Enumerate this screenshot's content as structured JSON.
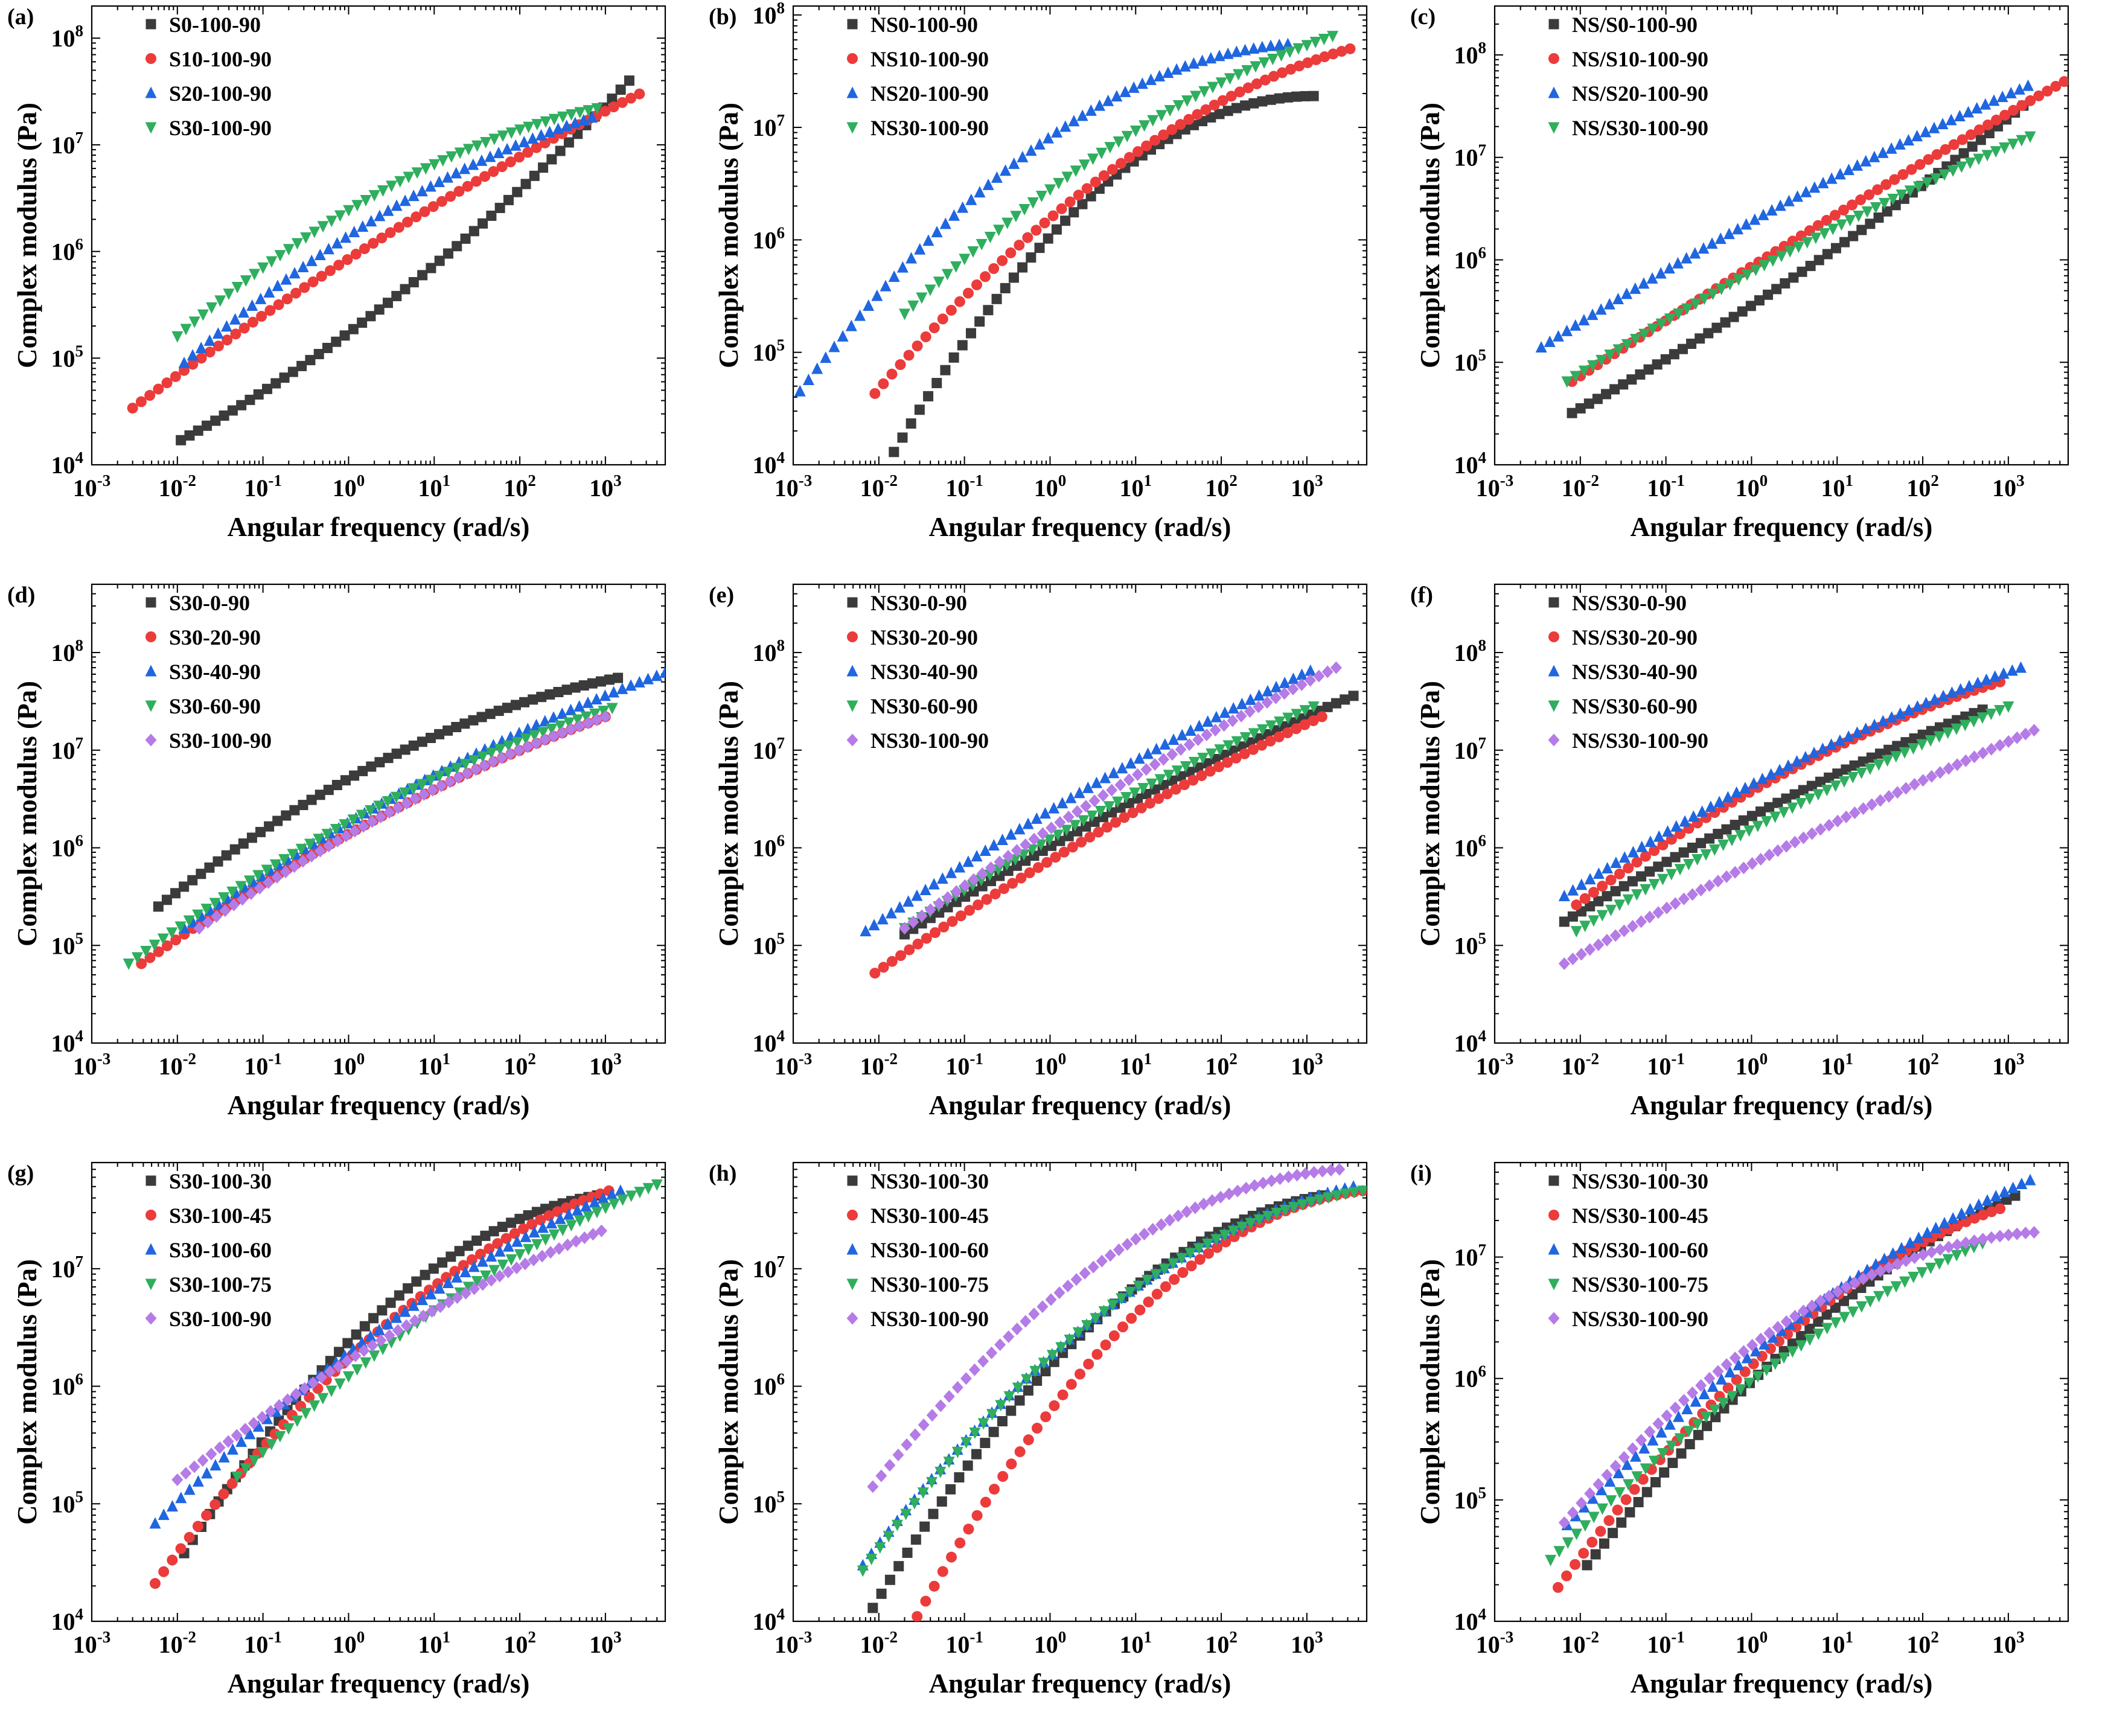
{
  "colors": {
    "black": "#3b3b3b",
    "red": "#ec3b3b",
    "blue": "#1f66e0",
    "green": "#2fae5e",
    "purple": "#b57be6"
  },
  "chart_data": [
    {
      "panel": "(a)",
      "type": "scatter",
      "xlabel": "Angular frequency (rad/s)",
      "ylabel": "Complex modulus (Pa)",
      "xscale": "log",
      "yscale": "log",
      "xlim": [
        0.001,
        5000
      ],
      "ylim": [
        10000,
        200000000
      ],
      "xticks": [
        "-3",
        "-2",
        "-1",
        "0",
        "1",
        "2",
        "3"
      ],
      "yticks": [
        "4",
        "5",
        "6",
        "7",
        "8"
      ],
      "legend_position": "top-left",
      "grid": false,
      "series": [
        {
          "name": "S0-100-90",
          "marker": "square",
          "color": "black",
          "x_range": [
            0.011,
            1900
          ],
          "y_range": [
            17000,
            40000000
          ],
          "shape": 0.08
        },
        {
          "name": "S10-100-90",
          "marker": "circle",
          "color": "red",
          "x_range": [
            0.003,
            2500
          ],
          "y_range": [
            34000,
            30000000
          ],
          "shape": -0.05
        },
        {
          "name": "S20-100-90",
          "marker": "triangle-up",
          "color": "blue",
          "x_range": [
            0.012,
            700
          ],
          "y_range": [
            90000,
            18000000
          ],
          "shape": -0.12
        },
        {
          "name": "S30-100-90",
          "marker": "triangle-down",
          "color": "green",
          "x_range": [
            0.01,
            800
          ],
          "y_range": [
            160000,
            22000000
          ],
          "shape": -0.15
        }
      ]
    },
    {
      "panel": "(b)",
      "type": "scatter",
      "xlabel": "Angular frequency (rad/s)",
      "ylabel": "Complex modulus (Pa)",
      "xscale": "log",
      "yscale": "log",
      "xlim": [
        0.001,
        5000
      ],
      "ylim": [
        10000,
        120000000
      ],
      "xticks": [
        "-3",
        "-2",
        "-1",
        "0",
        "1",
        "2",
        "3"
      ],
      "yticks": [
        "4",
        "5",
        "6",
        "7",
        "8"
      ],
      "legend_position": "top-left",
      "grid": false,
      "series": [
        {
          "name": "NS0-100-90",
          "marker": "square",
          "color": "black",
          "x_range": [
            0.015,
            1200
          ],
          "y_range": [
            13000,
            19000000
          ],
          "shape": -0.25
        },
        {
          "name": "NS10-100-90",
          "marker": "circle",
          "color": "red",
          "x_range": [
            0.009,
            3200
          ],
          "y_range": [
            43000,
            50000000
          ],
          "shape": -0.15
        },
        {
          "name": "NS20-100-90",
          "marker": "triangle-up",
          "color": "blue",
          "x_range": [
            0.0012,
            600
          ],
          "y_range": [
            45000,
            55000000
          ],
          "shape": -0.22
        },
        {
          "name": "NS30-100-90",
          "marker": "triangle-down",
          "color": "green",
          "x_range": [
            0.02,
            2000
          ],
          "y_range": [
            220000,
            65000000
          ],
          "shape": -0.12
        }
      ]
    },
    {
      "panel": "(c)",
      "type": "scatter",
      "xlabel": "Angular frequency (rad/s)",
      "ylabel": "Complex modulus (Pa)",
      "xscale": "log",
      "yscale": "log",
      "xlim": [
        0.001,
        5000
      ],
      "ylim": [
        10000,
        300000000
      ],
      "xticks": [
        "-3",
        "-2",
        "-1",
        "0",
        "1",
        "2",
        "3"
      ],
      "yticks": [
        "4",
        "5",
        "6",
        "7",
        "8"
      ],
      "legend_position": "top-left",
      "grid": false,
      "series": [
        {
          "name": "NS/S0-100-90",
          "marker": "square",
          "color": "black",
          "x_range": [
            0.008,
            1500
          ],
          "y_range": [
            32000,
            32000000
          ],
          "shape": 0.05
        },
        {
          "name": "NS/S10-100-90",
          "marker": "circle",
          "color": "red",
          "x_range": [
            0.008,
            4500
          ],
          "y_range": [
            65000,
            55000000
          ],
          "shape": -0.02
        },
        {
          "name": "NS/S20-100-90",
          "marker": "triangle-up",
          "color": "blue",
          "x_range": [
            0.0035,
            1700
          ],
          "y_range": [
            140000,
            50000000
          ],
          "shape": -0.05
        },
        {
          "name": "NS/S30-100-90",
          "marker": "triangle-down",
          "color": "green",
          "x_range": [
            0.007,
            1800
          ],
          "y_range": [
            65000,
            16000000
          ],
          "shape": -0.05
        }
      ]
    },
    {
      "panel": "(d)",
      "type": "scatter",
      "xlabel": "Angular frequency (rad/s)",
      "ylabel": "Complex modulus (Pa)",
      "xscale": "log",
      "yscale": "log",
      "xlim": [
        0.001,
        5000
      ],
      "ylim": [
        10000,
        500000000
      ],
      "xticks": [
        "-3",
        "-2",
        "-1",
        "0",
        "1",
        "2",
        "3"
      ],
      "yticks": [
        "4",
        "5",
        "6",
        "7",
        "8"
      ],
      "legend_position": "top-left",
      "grid": false,
      "series": [
        {
          "name": "S30-0-90",
          "marker": "square",
          "color": "black",
          "x_range": [
            0.006,
            1400
          ],
          "y_range": [
            250000,
            55000000
          ],
          "shape": -0.15
        },
        {
          "name": "S30-20-90",
          "marker": "circle",
          "color": "red",
          "x_range": [
            0.0038,
            1000
          ],
          "y_range": [
            65000,
            22000000
          ],
          "shape": -0.08
        },
        {
          "name": "S30-40-90",
          "marker": "triangle-up",
          "color": "blue",
          "x_range": [
            0.012,
            5000
          ],
          "y_range": [
            150000,
            62000000
          ],
          "shape": -0.08
        },
        {
          "name": "S30-60-90",
          "marker": "triangle-down",
          "color": "green",
          "x_range": [
            0.0027,
            1200
          ],
          "y_range": [
            65000,
            27000000
          ],
          "shape": -0.1
        },
        {
          "name": "S30-100-90",
          "marker": "diamond",
          "color": "purple",
          "x_range": [
            0.018,
            1000
          ],
          "y_range": [
            150000,
            22000000
          ],
          "shape": -0.08
        }
      ]
    },
    {
      "panel": "(e)",
      "type": "scatter",
      "xlabel": "Angular frequency (rad/s)",
      "ylabel": "Complex modulus (Pa)",
      "xscale": "log",
      "yscale": "log",
      "xlim": [
        0.001,
        5000
      ],
      "ylim": [
        10000,
        500000000
      ],
      "xticks": [
        "-3",
        "-2",
        "-1",
        "0",
        "1",
        "2",
        "3"
      ],
      "yticks": [
        "4",
        "5",
        "6",
        "7",
        "8"
      ],
      "legend_position": "top-left",
      "grid": false,
      "series": [
        {
          "name": "NS30-0-90",
          "marker": "square",
          "color": "black",
          "x_range": [
            0.02,
            3500
          ],
          "y_range": [
            130000,
            36000000
          ],
          "shape": -0.05
        },
        {
          "name": "NS30-20-90",
          "marker": "circle",
          "color": "red",
          "x_range": [
            0.009,
            1500
          ],
          "y_range": [
            52000,
            22000000
          ],
          "shape": -0.05
        },
        {
          "name": "NS30-40-90",
          "marker": "triangle-up",
          "color": "blue",
          "x_range": [
            0.007,
            1100
          ],
          "y_range": [
            140000,
            65000000
          ],
          "shape": -0.05
        },
        {
          "name": "NS30-60-90",
          "marker": "triangle-down",
          "color": "green",
          "x_range": [
            0.02,
            1200
          ],
          "y_range": [
            150000,
            28000000
          ],
          "shape": -0.05
        },
        {
          "name": "NS30-100-90",
          "marker": "diamond",
          "color": "purple",
          "x_range": [
            0.02,
            2200
          ],
          "y_range": [
            150000,
            70000000
          ],
          "shape": -0.05
        }
      ]
    },
    {
      "panel": "(f)",
      "type": "scatter",
      "xlabel": "Angular frequency (rad/s)",
      "ylabel": "Complex modulus (Pa)",
      "xscale": "log",
      "yscale": "log",
      "xlim": [
        0.001,
        5000
      ],
      "ylim": [
        10000,
        500000000
      ],
      "xticks": [
        "-3",
        "-2",
        "-1",
        "0",
        "1",
        "2",
        "3"
      ],
      "yticks": [
        "4",
        "5",
        "6",
        "7",
        "8"
      ],
      "legend_position": "top-left",
      "grid": false,
      "series": [
        {
          "name": "NS/S30-0-90",
          "marker": "square",
          "color": "black",
          "x_range": [
            0.0065,
            500
          ],
          "y_range": [
            175000,
            26000000
          ],
          "shape": -0.05
        },
        {
          "name": "NS/S30-20-90",
          "marker": "circle",
          "color": "red",
          "x_range": [
            0.009,
            800
          ],
          "y_range": [
            260000,
            50000000
          ],
          "shape": -0.1
        },
        {
          "name": "NS/S30-40-90",
          "marker": "triangle-up",
          "color": "blue",
          "x_range": [
            0.0065,
            1400
          ],
          "y_range": [
            320000,
            70000000
          ],
          "shape": -0.08
        },
        {
          "name": "NS/S30-60-90",
          "marker": "triangle-down",
          "color": "green",
          "x_range": [
            0.009,
            1000
          ],
          "y_range": [
            140000,
            28000000
          ],
          "shape": -0.05
        },
        {
          "name": "NS/S30-100-90",
          "marker": "diamond",
          "color": "purple",
          "x_range": [
            0.0065,
            2000
          ],
          "y_range": [
            65000,
            16000000
          ],
          "shape": -0.03
        }
      ]
    },
    {
      "panel": "(g)",
      "type": "scatter",
      "xlabel": "Angular frequency (rad/s)",
      "ylabel": "Complex modulus (Pa)",
      "xscale": "log",
      "yscale": "log",
      "xlim": [
        0.001,
        5000
      ],
      "ylim": [
        10000,
        80000000
      ],
      "xticks": [
        "-3",
        "-2",
        "-1",
        "0",
        "1",
        "2",
        "3"
      ],
      "yticks": [
        "4",
        "5",
        "6",
        "7"
      ],
      "legend_position": "top-left",
      "grid": false,
      "series": [
        {
          "name": "S30-100-30",
          "marker": "square",
          "color": "black",
          "x_range": [
            0.012,
            800
          ],
          "y_range": [
            38000,
            42000000
          ],
          "shape": -0.2
        },
        {
          "name": "S30-100-45",
          "marker": "circle",
          "color": "red",
          "x_range": [
            0.0055,
            1100
          ],
          "y_range": [
            21000,
            46000000
          ],
          "shape": -0.15
        },
        {
          "name": "S30-100-60",
          "marker": "triangle-up",
          "color": "blue",
          "x_range": [
            0.0055,
            1500
          ],
          "y_range": [
            68000,
            46000000
          ],
          "shape": -0.1
        },
        {
          "name": "S30-100-75",
          "marker": "triangle-down",
          "color": "green",
          "x_range": [
            0.05,
            4000
          ],
          "y_range": [
            170000,
            52000000
          ],
          "shape": -0.1
        },
        {
          "name": "S30-100-90",
          "marker": "diamond",
          "color": "purple",
          "x_range": [
            0.01,
            900
          ],
          "y_range": [
            160000,
            21000000
          ],
          "shape": -0.08
        }
      ]
    },
    {
      "panel": "(h)",
      "type": "scatter",
      "xlabel": "Angular frequency (rad/s)",
      "ylabel": "Complex modulus (Pa)",
      "xscale": "log",
      "yscale": "log",
      "xlim": [
        0.001,
        5000
      ],
      "ylim": [
        10000,
        80000000
      ],
      "xticks": [
        "-3",
        "-2",
        "-1",
        "0",
        "1",
        "2",
        "3"
      ],
      "yticks": [
        "4",
        "5",
        "6",
        "7"
      ],
      "legend_position": "top-left",
      "grid": false,
      "series": [
        {
          "name": "NS30-100-30",
          "marker": "square",
          "color": "black",
          "x_range": [
            0.0085,
            1500
          ],
          "y_range": [
            13000,
            42000000
          ],
          "shape": -0.2
        },
        {
          "name": "NS30-100-45",
          "marker": "circle",
          "color": "red",
          "x_range": [
            0.028,
            4500
          ],
          "y_range": [
            11000,
            46000000
          ],
          "shape": -0.22
        },
        {
          "name": "NS30-100-60",
          "marker": "triangle-up",
          "color": "blue",
          "x_range": [
            0.0065,
            3500
          ],
          "y_range": [
            30000,
            50000000
          ],
          "shape": -0.18
        },
        {
          "name": "NS30-100-75",
          "marker": "triangle-down",
          "color": "green",
          "x_range": [
            0.0065,
            4500
          ],
          "y_range": [
            27000,
            46000000
          ],
          "shape": -0.2
        },
        {
          "name": "NS30-100-90",
          "marker": "diamond",
          "color": "purple",
          "x_range": [
            0.0085,
            2400
          ],
          "y_range": [
            140000,
            70000000
          ],
          "shape": -0.22
        }
      ]
    },
    {
      "panel": "(i)",
      "type": "scatter",
      "xlabel": "Angular frequency (rad/s)",
      "ylabel": "Complex modulus (Pa)",
      "xscale": "log",
      "yscale": "log",
      "xlim": [
        0.001,
        5000
      ],
      "ylim": [
        10000,
        60000000
      ],
      "xticks": [
        "-3",
        "-2",
        "-1",
        "0",
        "1",
        "2",
        "3"
      ],
      "yticks": [
        "4",
        "5",
        "6",
        "7"
      ],
      "legend_position": "top-left",
      "grid": false,
      "series": [
        {
          "name": "NS/S30-100-30",
          "marker": "square",
          "color": "black",
          "x_range": [
            0.012,
            1200
          ],
          "y_range": [
            29000,
            32000000
          ],
          "shape": -0.12
        },
        {
          "name": "NS/S30-100-45",
          "marker": "circle",
          "color": "red",
          "x_range": [
            0.0055,
            800
          ],
          "y_range": [
            19000,
            25000000
          ],
          "shape": -0.15
        },
        {
          "name": "NS/S30-100-60",
          "marker": "triangle-up",
          "color": "blue",
          "x_range": [
            0.007,
            1800
          ],
          "y_range": [
            62000,
            43000000
          ],
          "shape": -0.1
        },
        {
          "name": "NS/S30-100-75",
          "marker": "triangle-down",
          "color": "green",
          "x_range": [
            0.0045,
            500
          ],
          "y_range": [
            32000,
            13000000
          ],
          "shape": -0.1
        },
        {
          "name": "NS/S30-100-90",
          "marker": "diamond",
          "color": "purple",
          "x_range": [
            0.0065,
            2000
          ],
          "y_range": [
            65000,
            16000000
          ],
          "shape": -0.22
        }
      ]
    }
  ]
}
